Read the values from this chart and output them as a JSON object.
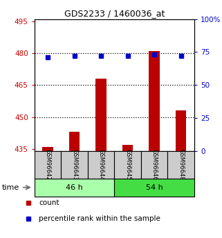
{
  "title": "GDS2233 / 1460036_at",
  "samples": [
    "GSM96642",
    "GSM96643",
    "GSM96644",
    "GSM96645",
    "GSM96646",
    "GSM96648"
  ],
  "group_labels": [
    "46 h",
    "54 h"
  ],
  "group_color_46": "#aaffaa",
  "group_color_54": "#44dd44",
  "count_values": [
    436,
    443,
    468,
    437,
    481,
    453
  ],
  "percentile_values": [
    71,
    72,
    72,
    72,
    73,
    72
  ],
  "ylim_left": [
    434,
    496
  ],
  "ylim_right": [
    0,
    100
  ],
  "yticks_left": [
    435,
    450,
    465,
    480,
    495
  ],
  "yticks_right": [
    0,
    25,
    50,
    75,
    100
  ],
  "bar_color": "#bb0000",
  "dot_color": "#0000cc",
  "label_bg": "#cccccc",
  "left_axis_color": "#cc0000",
  "right_axis_color": "#0000cc",
  "grid_values": [
    450,
    465,
    480
  ]
}
